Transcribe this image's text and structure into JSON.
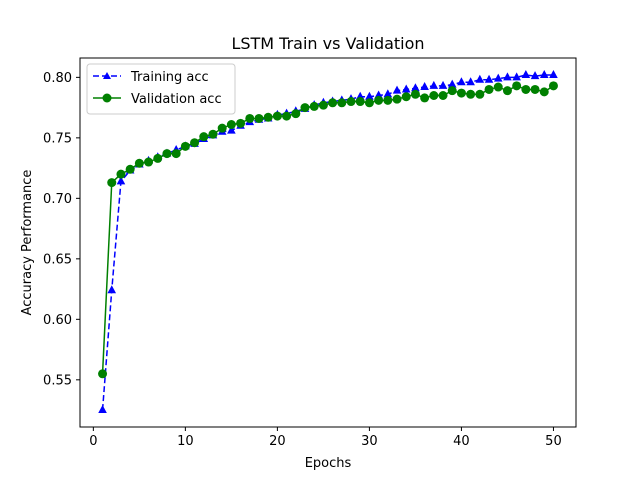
{
  "chart_data": {
    "type": "line",
    "title": "LSTM Train vs Validation",
    "xlabel": "Epochs",
    "ylabel": "Accuracy Performance",
    "xlim": [
      -1.45,
      52.45
    ],
    "ylim": [
      0.511,
      0.816
    ],
    "xticks": [
      0,
      10,
      20,
      30,
      40,
      50
    ],
    "yticks": [
      0.55,
      0.6,
      0.65,
      0.7,
      0.75,
      0.8
    ],
    "ytick_labels": [
      "0.55",
      "0.60",
      "0.65",
      "0.70",
      "0.75",
      "0.80"
    ],
    "grid": false,
    "legend_position": "upper-left",
    "x": [
      1,
      2,
      3,
      4,
      5,
      6,
      7,
      8,
      9,
      10,
      11,
      12,
      13,
      14,
      15,
      16,
      17,
      18,
      19,
      20,
      21,
      22,
      23,
      24,
      25,
      26,
      27,
      28,
      29,
      30,
      31,
      32,
      33,
      34,
      35,
      36,
      37,
      38,
      39,
      40,
      41,
      42,
      43,
      44,
      45,
      46,
      47,
      48,
      49,
      50
    ],
    "series": [
      {
        "name": "Training acc",
        "color": "#0000ff",
        "line_style": "dashed",
        "marker": "triangle-up",
        "values": [
          0.525,
          0.624,
          0.714,
          0.723,
          0.728,
          0.731,
          0.734,
          0.737,
          0.74,
          0.743,
          0.745,
          0.749,
          0.752,
          0.755,
          0.756,
          0.76,
          0.763,
          0.765,
          0.766,
          0.769,
          0.77,
          0.772,
          0.774,
          0.777,
          0.779,
          0.78,
          0.781,
          0.782,
          0.784,
          0.784,
          0.785,
          0.786,
          0.789,
          0.79,
          0.791,
          0.792,
          0.793,
          0.793,
          0.794,
          0.796,
          0.796,
          0.798,
          0.798,
          0.799,
          0.8,
          0.8,
          0.802,
          0.801,
          0.802,
          0.802
        ]
      },
      {
        "name": "Validation acc",
        "color": "#008000",
        "line_style": "solid",
        "marker": "circle",
        "values": [
          0.555,
          0.713,
          0.72,
          0.724,
          0.729,
          0.73,
          0.733,
          0.737,
          0.737,
          0.743,
          0.746,
          0.751,
          0.753,
          0.758,
          0.761,
          0.762,
          0.766,
          0.766,
          0.767,
          0.768,
          0.768,
          0.77,
          0.775,
          0.776,
          0.777,
          0.779,
          0.779,
          0.78,
          0.78,
          0.779,
          0.781,
          0.781,
          0.782,
          0.784,
          0.786,
          0.783,
          0.785,
          0.785,
          0.789,
          0.787,
          0.786,
          0.786,
          0.79,
          0.792,
          0.789,
          0.793,
          0.79,
          0.79,
          0.788,
          0.793
        ]
      }
    ]
  }
}
